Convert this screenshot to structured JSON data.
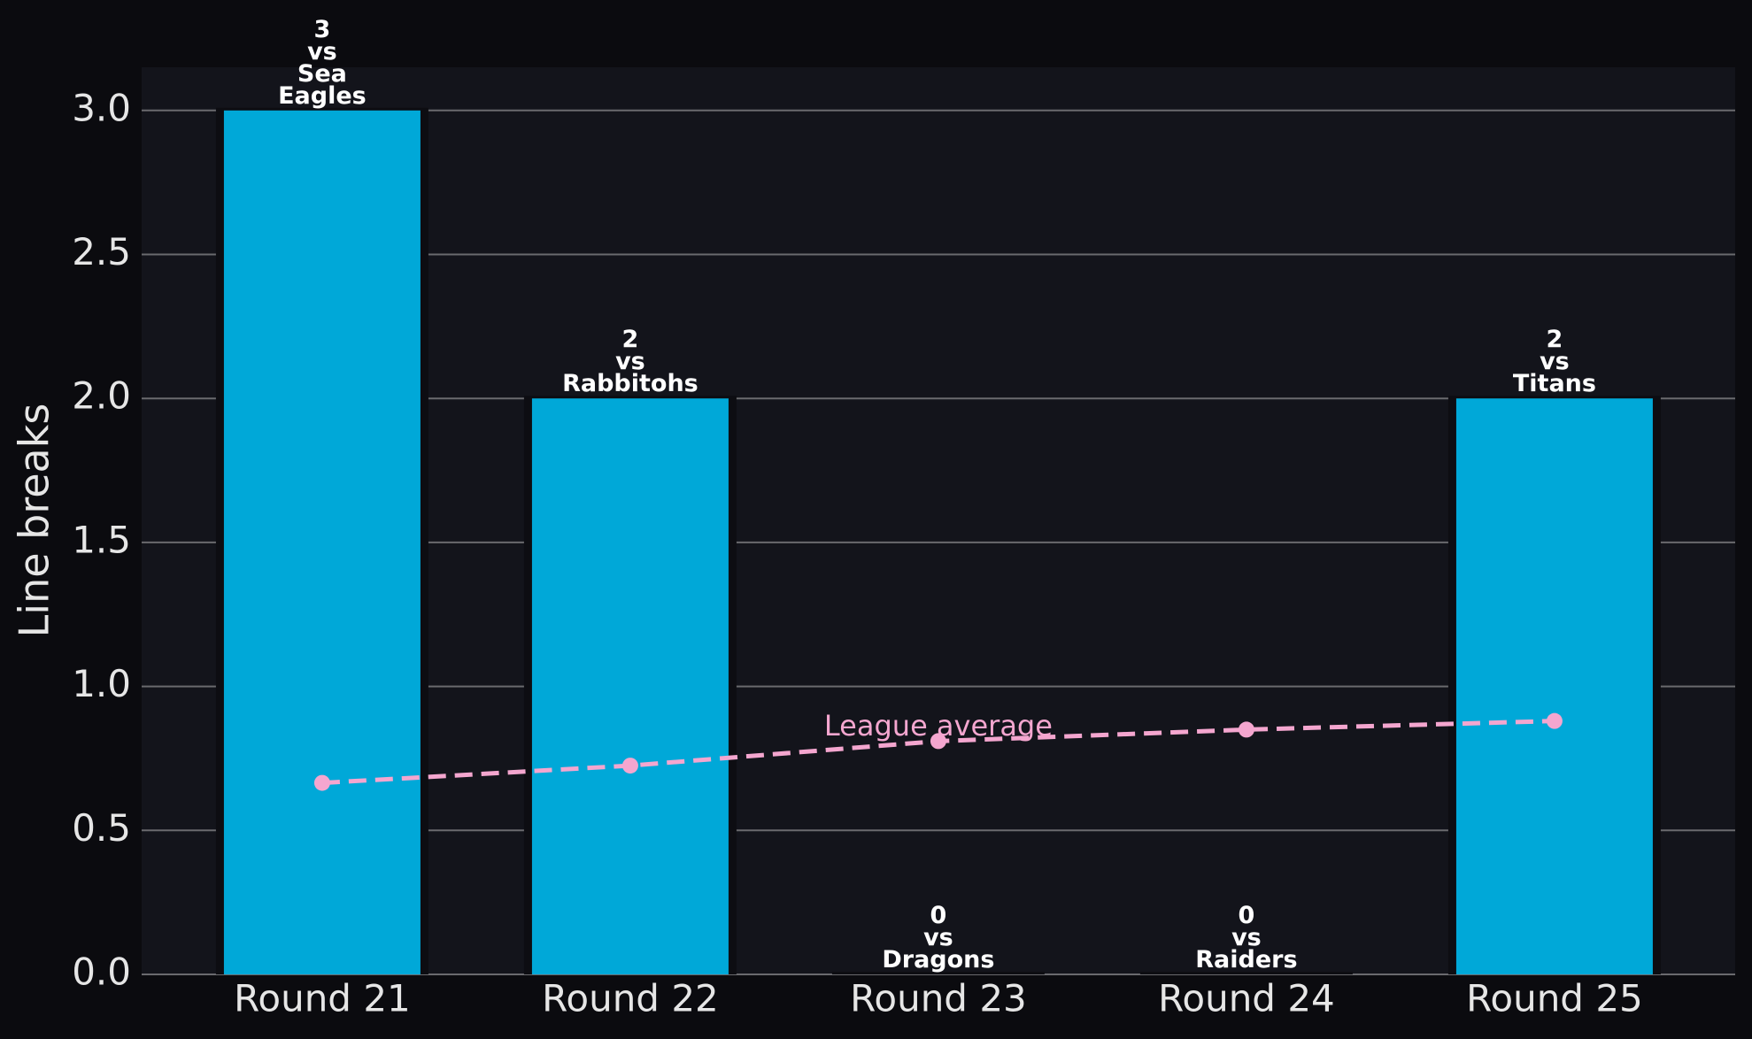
{
  "chart_data": {
    "type": "bar",
    "y_label": "Line breaks",
    "categories": [
      "Round 21",
      "Round 22",
      "Round 23",
      "Round 24",
      "Round 25"
    ],
    "values": [
      3,
      2,
      0,
      0,
      2
    ],
    "value_labels": [
      "3\nvs\nSea\nEagles",
      "2\nvs\nRabbitohs",
      "0\nvs\nDragons",
      "0\nvs\nRaiders",
      "2\nvs\nTitans"
    ],
    "color": "#00a8d8",
    "average": {
      "name": "League average",
      "color": "#f4a6cf",
      "values": [
        0.665,
        0.725,
        0.81,
        0.85,
        0.88
      ]
    },
    "ylim": [
      0,
      3.15
    ],
    "yticks": [
      {
        "value": 0,
        "label": "0.0"
      },
      0.5,
      {
        "value": 1,
        "label": "1.0"
      },
      1.5,
      {
        "value": 2,
        "label": "2.0"
      },
      2.5,
      {
        "value": 3,
        "label": "3.0"
      }
    ],
    "grid": true
  }
}
